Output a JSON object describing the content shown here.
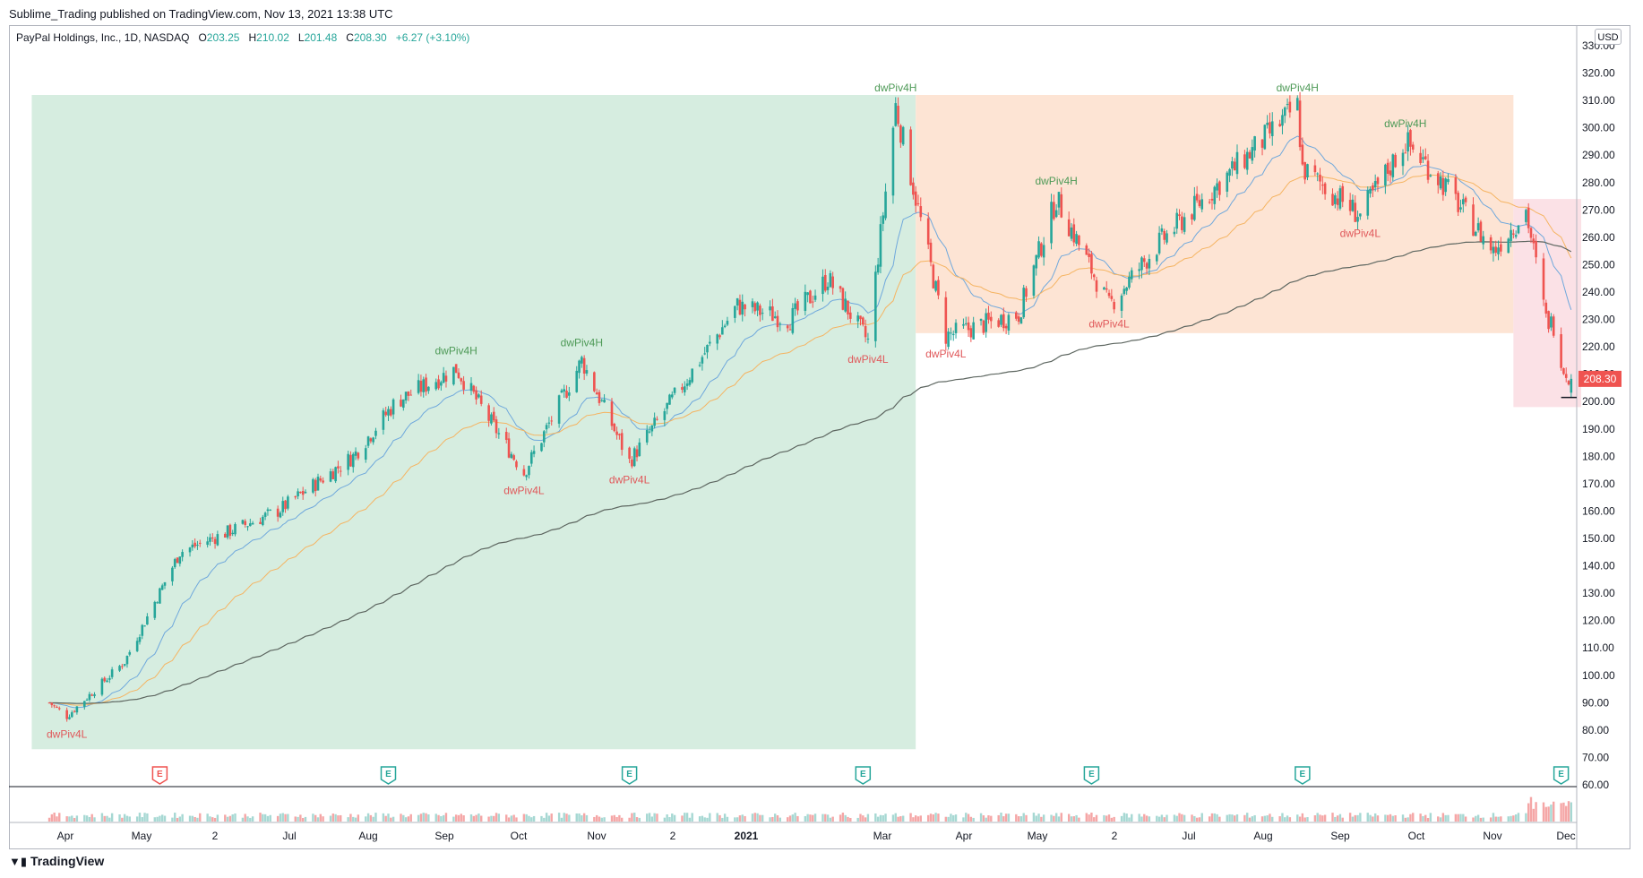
{
  "header": {
    "published_line": "Sublime_Trading published on TradingView.com, Nov 13, 2021 13:38 UTC"
  },
  "legend": {
    "symbol": "PayPal Holdings, Inc., 1D, NASDAQ",
    "o_label": "O",
    "o_value": "203.25",
    "h_label": "H",
    "h_value": "210.02",
    "l_label": "L",
    "l_value": "201.48",
    "c_label": "C",
    "c_value": "208.30",
    "change": "+6.27 (+3.10%)"
  },
  "currency_button": "USD",
  "footer": {
    "brand": "TradingView",
    "logo": "tradingview-logo-icon"
  },
  "colors": {
    "up": "#26a69a",
    "down": "#ef5350",
    "green_zone": "#d6ede0",
    "orange_zone": "#fde4d4",
    "red_zone": "#fbe1e6",
    "ema_fast": "#6fa8dc",
    "ema_mid": "#f5b462",
    "sma_long": "#5d6660",
    "pivot_high": "#4e9a57",
    "pivot_low": "#e0585a"
  },
  "chart_data": {
    "type": "candlestick",
    "title": "PayPal Holdings, Inc., 1D, NASDAQ",
    "y_axis": {
      "min": 60,
      "max": 330,
      "step": 10,
      "tick_labels": [
        "60.00",
        "70.00",
        "80.00",
        "90.00",
        "100.00",
        "110.00",
        "120.00",
        "130.00",
        "140.00",
        "150.00",
        "160.00",
        "170.00",
        "180.00",
        "190.00",
        "200.00",
        "210.00",
        "220.00",
        "230.00",
        "240.00",
        "250.00",
        "260.00",
        "270.00",
        "280.00",
        "290.00",
        "300.00",
        "310.00",
        "320.00",
        "330.00"
      ],
      "last_price_label": "208.30",
      "last_price": 208.3,
      "support_level": 201.5
    },
    "x_axis": {
      "tick_labels": [
        "Apr",
        "May",
        "2",
        "Jul",
        "Aug",
        "Sep",
        "Oct",
        "Nov",
        "2",
        "2021",
        "Mar",
        "Apr",
        "May",
        "2",
        "Jul",
        "Aug",
        "Sep",
        "Oct",
        "Nov",
        "Dec"
      ],
      "bold_label": "2021",
      "range": [
        "Mar 2020",
        "Dec 2021"
      ]
    },
    "anchor_prices": [
      {
        "date": "2020-03-16",
        "close": 90
      },
      {
        "date": "2020-03-23",
        "close": 85
      },
      {
        "date": "2020-04-15",
        "close": 105
      },
      {
        "date": "2020-05-07",
        "close": 145
      },
      {
        "date": "2020-06-15",
        "close": 160
      },
      {
        "date": "2020-07-15",
        "close": 180
      },
      {
        "date": "2020-08-01",
        "close": 200
      },
      {
        "date": "2020-08-25",
        "close": 212
      },
      {
        "date": "2020-09-21",
        "close": 174
      },
      {
        "date": "2020-10-14",
        "close": 215
      },
      {
        "date": "2020-11-02",
        "close": 178
      },
      {
        "date": "2020-12-15",
        "close": 235
      },
      {
        "date": "2021-01-05",
        "close": 230
      },
      {
        "date": "2021-01-20",
        "close": 245
      },
      {
        "date": "2021-02-05",
        "close": 222
      },
      {
        "date": "2021-02-16",
        "close": 308
      },
      {
        "date": "2021-03-08",
        "close": 224
      },
      {
        "date": "2021-04-06",
        "close": 232
      },
      {
        "date": "2021-04-21",
        "close": 274
      },
      {
        "date": "2021-05-12",
        "close": 235
      },
      {
        "date": "2021-06-01",
        "close": 258
      },
      {
        "date": "2021-07-26",
        "close": 308
      },
      {
        "date": "2021-07-28",
        "close": 285
      },
      {
        "date": "2021-08-20",
        "close": 268
      },
      {
        "date": "2021-09-07",
        "close": 295
      },
      {
        "date": "2021-09-20",
        "close": 282
      },
      {
        "date": "2021-10-12",
        "close": 255
      },
      {
        "date": "2021-10-25",
        "close": 270
      },
      {
        "date": "2021-11-02",
        "close": 230
      },
      {
        "date": "2021-11-05",
        "close": 228
      },
      {
        "date": "2021-11-09",
        "close": 212
      },
      {
        "date": "2021-11-12",
        "close": 208.3
      }
    ],
    "moving_averages": [
      {
        "name": "fast EMA",
        "color": "#6fa8dc"
      },
      {
        "name": "mid EMA",
        "color": "#f5b462"
      },
      {
        "name": "200 SMA",
        "color": "#5d6660"
      }
    ],
    "zones": [
      {
        "name": "green uptrend zone",
        "from": "2020-03-09",
        "to": "2021-02-24",
        "low": 73,
        "high": 312
      },
      {
        "name": "orange range zone",
        "from": "2021-02-24",
        "to": "2021-10-20",
        "low": 225,
        "high": 312
      },
      {
        "name": "red breakdown zone",
        "from": "2021-10-20",
        "to": "2021-11-16",
        "low": 198,
        "high": 274
      }
    ],
    "pivot_labels": [
      {
        "text": "dwPiv4L",
        "date": "2020-03-23",
        "price": 85,
        "kind": "low"
      },
      {
        "text": "dwPiv4H",
        "date": "2020-08-25",
        "price": 212,
        "kind": "high"
      },
      {
        "text": "dwPiv4L",
        "date": "2020-09-21",
        "price": 174,
        "kind": "low"
      },
      {
        "text": "dwPiv4H",
        "date": "2020-10-14",
        "price": 215,
        "kind": "high"
      },
      {
        "text": "dwPiv4L",
        "date": "2020-11-02",
        "price": 178,
        "kind": "low"
      },
      {
        "text": "dwPiv4L",
        "date": "2021-02-05",
        "price": 222,
        "kind": "low"
      },
      {
        "text": "dwPiv4H",
        "date": "2021-02-16",
        "price": 308,
        "kind": "high"
      },
      {
        "text": "dwPiv4L",
        "date": "2021-03-08",
        "price": 224,
        "kind": "low"
      },
      {
        "text": "dwPiv4H",
        "date": "2021-04-21",
        "price": 274,
        "kind": "high"
      },
      {
        "text": "dwPiv4L",
        "date": "2021-05-12",
        "price": 235,
        "kind": "low"
      },
      {
        "text": "dwPiv4H",
        "date": "2021-07-26",
        "price": 308,
        "kind": "high"
      },
      {
        "text": "dwPiv4L",
        "date": "2021-08-20",
        "price": 268,
        "kind": "low"
      },
      {
        "text": "dwPiv4H",
        "date": "2021-09-07",
        "price": 295,
        "kind": "high"
      }
    ],
    "earnings_markers": [
      {
        "label": "E",
        "date": "2020-04-29",
        "result": "miss"
      },
      {
        "label": "E",
        "date": "2020-07-29",
        "result": "beat"
      },
      {
        "label": "E",
        "date": "2020-11-02",
        "result": "beat"
      },
      {
        "label": "E",
        "date": "2021-02-03",
        "result": "beat"
      },
      {
        "label": "E",
        "date": "2021-05-05",
        "result": "beat"
      },
      {
        "label": "E",
        "date": "2021-07-28",
        "result": "beat"
      },
      {
        "label": "E",
        "date": "2021-11-08",
        "result": "beat"
      }
    ],
    "volume": {
      "note": "daily volume histogram, spikes at 2021-11-09"
    }
  }
}
